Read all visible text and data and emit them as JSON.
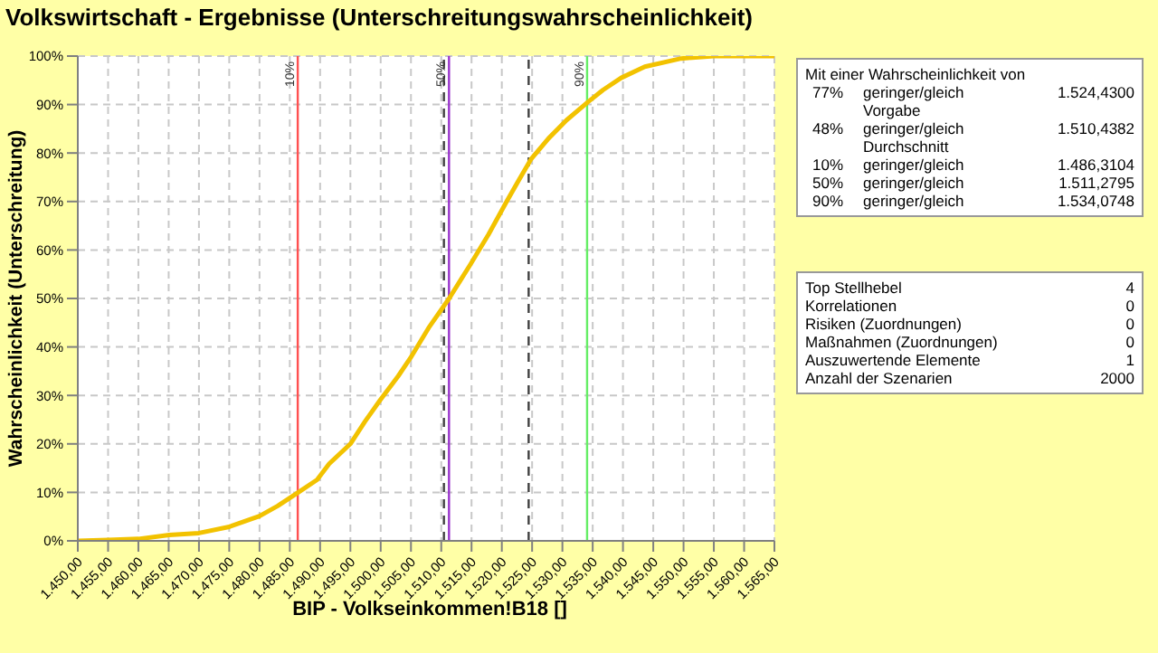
{
  "chart_data": {
    "type": "line",
    "title": "Volkswirtschaft - Ergebnisse (Unterschreitungswahrscheinlichkeit)",
    "xlabel": "BIP - Volkseinkommen!B18 []",
    "ylabel": "Wahrscheinlichkeit (Unterschreitung)",
    "x": [
      1450,
      1455,
      1460,
      1465.1,
      1470,
      1475,
      1480,
      1483,
      1486.4,
      1489.5,
      1491.5,
      1495,
      1497.4,
      1499.9,
      1502.9,
      1504.9,
      1507.9,
      1511.3,
      1514.8,
      1517.8,
      1520.8,
      1522.8,
      1524.8,
      1527.7,
      1530.7,
      1534.2,
      1536.7,
      1539.7,
      1543.6,
      1549.6,
      1555,
      1565
    ],
    "series": [
      {
        "color": "#f2c200",
        "values": [
          0,
          0.2,
          0.4,
          1.2,
          1.6,
          2.9,
          5.1,
          7.2,
          10,
          12.6,
          15.9,
          20,
          24.6,
          29,
          34,
          37.7,
          43.9,
          50,
          57,
          63.2,
          70,
          74.4,
          78.7,
          83,
          86.8,
          90.5,
          93,
          95.5,
          97.8,
          99.5,
          100,
          100
        ]
      }
    ],
    "xlim": [
      1450,
      1565
    ],
    "xticks": [
      {
        "value": 1450,
        "label": "1.450,00"
      },
      {
        "value": 1455,
        "label": "1.455,00"
      },
      {
        "value": 1460,
        "label": "1.460,00"
      },
      {
        "value": 1465,
        "label": "1.465,00"
      },
      {
        "value": 1470,
        "label": "1.470,00"
      },
      {
        "value": 1475,
        "label": "1.475,00"
      },
      {
        "value": 1480,
        "label": "1.480,00"
      },
      {
        "value": 1485,
        "label": "1.485,00"
      },
      {
        "value": 1490,
        "label": "1.490,00"
      },
      {
        "value": 1495,
        "label": "1.495,00"
      },
      {
        "value": 1500,
        "label": "1.500,00"
      },
      {
        "value": 1505,
        "label": "1.505,00"
      },
      {
        "value": 1510,
        "label": "1.510,00"
      },
      {
        "value": 1515,
        "label": "1.515,00"
      },
      {
        "value": 1520,
        "label": "1.520,00"
      },
      {
        "value": 1525,
        "label": "1.525,00"
      },
      {
        "value": 1530,
        "label": "1.530,00"
      },
      {
        "value": 1535,
        "label": "1.535,00"
      },
      {
        "value": 1540,
        "label": "1.540,00"
      },
      {
        "value": 1545,
        "label": "1.545,00"
      },
      {
        "value": 1550,
        "label": "1.550,00"
      },
      {
        "value": 1555,
        "label": "1.555,00"
      },
      {
        "value": 1560,
        "label": "1.560,00"
      },
      {
        "value": 1565,
        "label": "1.565,00"
      }
    ],
    "ylim": [
      0,
      100
    ],
    "yticks": [
      {
        "value": 0,
        "label": "0%"
      },
      {
        "value": 10,
        "label": "10%"
      },
      {
        "value": 20,
        "label": "20%"
      },
      {
        "value": 30,
        "label": "30%"
      },
      {
        "value": 40,
        "label": "40%"
      },
      {
        "value": 50,
        "label": "50%"
      },
      {
        "value": 60,
        "label": "60%"
      },
      {
        "value": 70,
        "label": "70%"
      },
      {
        "value": 80,
        "label": "80%"
      },
      {
        "value": 90,
        "label": "90%"
      },
      {
        "value": 100,
        "label": "100%"
      }
    ],
    "grid": true,
    "marker": "none",
    "line_style": "solid",
    "legend": false,
    "ref_lines": [
      {
        "axis": "x",
        "value": 1486.3104,
        "color": "#ff5050"
      },
      {
        "axis": "x",
        "value": 1510.4382,
        "color": "#404040",
        "line_style": "dashed"
      },
      {
        "axis": "x",
        "value": 1511.2795,
        "color": "#9933cc"
      },
      {
        "axis": "x",
        "value": 1524.43,
        "color": "#404040",
        "line_style": "dashed"
      },
      {
        "axis": "x",
        "value": 1534.0748,
        "color": "#66ee66"
      }
    ],
    "annotations": [
      "Mit einer Wahrscheinlichkeit von",
      "77%",
      "geringer/gleich Vorgabe",
      "1.524,4300",
      "48%",
      "geringer/gleich Durchschnitt",
      "1.510,4382",
      "10%",
      "geringer/gleich",
      "1.486,3104",
      "50%",
      "geringer/gleich",
      "1.511,2795",
      "90%",
      "geringer/gleich",
      "1.534,0748",
      "Top Stellhebel",
      "4",
      "Korrelationen",
      "0",
      "Risiken (Zuordnungen)",
      "0",
      "Maßnahmen (Zuordnungen)",
      "0",
      "Auszuwertende Elemente",
      "1",
      "Anzahl der Szenarien",
      "2000",
      {
        "text": "10%",
        "x": 1486.3104,
        "y": 100
      },
      {
        "text": "50%",
        "x": 1511.2795,
        "y": 100
      },
      {
        "text": "90%",
        "x": 1534.0748,
        "y": 100
      }
    ]
  }
}
